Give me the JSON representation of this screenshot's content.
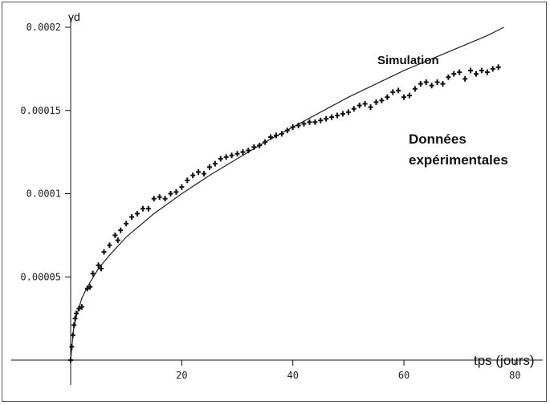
{
  "chart_data": {
    "type": "scatter",
    "title": "",
    "ylabel": "γd",
    "xlabel": "tps (jours)",
    "xlim": [
      0,
      85
    ],
    "ylim": [
      0,
      0.0002
    ],
    "x_ticks": [
      20,
      40,
      60,
      80
    ],
    "x_tick_labels": [
      "20",
      "40",
      "60",
      "80"
    ],
    "y_ticks": [
      5e-05,
      0.0001,
      0.00015,
      0.0002
    ],
    "y_tick_labels": [
      "0.00005",
      "0.0001",
      "0.00015",
      "0.0002"
    ],
    "grid": false,
    "series": [
      {
        "name": "Simulation",
        "style": "line",
        "color": "#222222",
        "x": [
          0,
          0.5,
          1,
          2,
          3,
          5,
          7,
          10,
          15,
          20,
          25,
          30,
          35,
          40,
          45,
          50,
          55,
          60,
          65,
          70,
          75,
          78
        ],
        "y": [
          0,
          1.8e-05,
          2.6e-05,
          3.7e-05,
          4.4e-05,
          5.5e-05,
          6.3e-05,
          7.4e-05,
          8.8e-05,
          0.0001,
          0.000111,
          0.000121,
          0.000131,
          0.00014,
          0.000149,
          0.000158,
          0.000166,
          0.000174,
          0.000181,
          0.000188,
          0.000195,
          0.0002
        ]
      },
      {
        "name": "Données expérimentales",
        "style": "markers",
        "color": "#111111",
        "x": [
          0,
          0.2,
          0.4,
          0.6,
          0.8,
          1,
          1.5,
          2,
          3,
          3.5,
          4,
          5,
          5.5,
          6,
          7,
          8,
          8.5,
          9,
          10,
          11,
          12,
          13,
          14,
          15,
          16,
          17,
          18,
          19,
          20,
          21,
          22,
          23,
          24,
          25,
          26,
          27,
          28,
          29,
          30,
          31,
          32,
          33,
          34,
          35,
          36,
          37,
          38,
          39,
          40,
          41,
          42,
          43,
          44,
          45,
          46,
          47,
          48,
          49,
          50,
          51,
          52,
          53,
          54,
          55,
          56,
          57,
          58,
          59,
          60,
          61,
          62,
          63,
          64,
          65,
          66,
          67,
          68,
          69,
          70,
          71,
          72,
          73,
          74,
          75,
          76,
          77
        ],
        "y": [
          0,
          8e-06,
          1.5e-05,
          2.1e-05,
          2.5e-05,
          2.8e-05,
          3.1e-05,
          3.2e-05,
          4.3e-05,
          4.4e-05,
          5.2e-05,
          5.7e-05,
          5.5e-05,
          6.5e-05,
          6.9e-05,
          7.5e-05,
          7.2e-05,
          7.8e-05,
          8.2e-05,
          8.6e-05,
          8.8e-05,
          9.1e-05,
          9.1e-05,
          9.7e-05,
          9.8e-05,
          9.7e-05,
          0.0001,
          0.000101,
          0.000104,
          0.000108,
          0.000111,
          0.000113,
          0.000112,
          0.000116,
          0.000118,
          0.000121,
          0.000122,
          0.000123,
          0.000124,
          0.000125,
          0.000126,
          0.000128,
          0.000129,
          0.000131,
          0.000134,
          0.000135,
          0.000136,
          0.000138,
          0.00014,
          0.000141,
          0.000142,
          0.000143,
          0.000143,
          0.000144,
          0.000145,
          0.000146,
          0.000147,
          0.000148,
          0.000149,
          0.000151,
          0.000153,
          0.000154,
          0.000152,
          0.000155,
          0.000156,
          0.000158,
          0.000161,
          0.000162,
          0.000158,
          0.000159,
          0.000163,
          0.000166,
          0.000167,
          0.000165,
          0.000167,
          0.000166,
          0.00017,
          0.000172,
          0.000173,
          0.000169,
          0.000174,
          0.000172,
          0.000174,
          0.000173,
          0.000175,
          0.000176
        ]
      }
    ]
  }
}
